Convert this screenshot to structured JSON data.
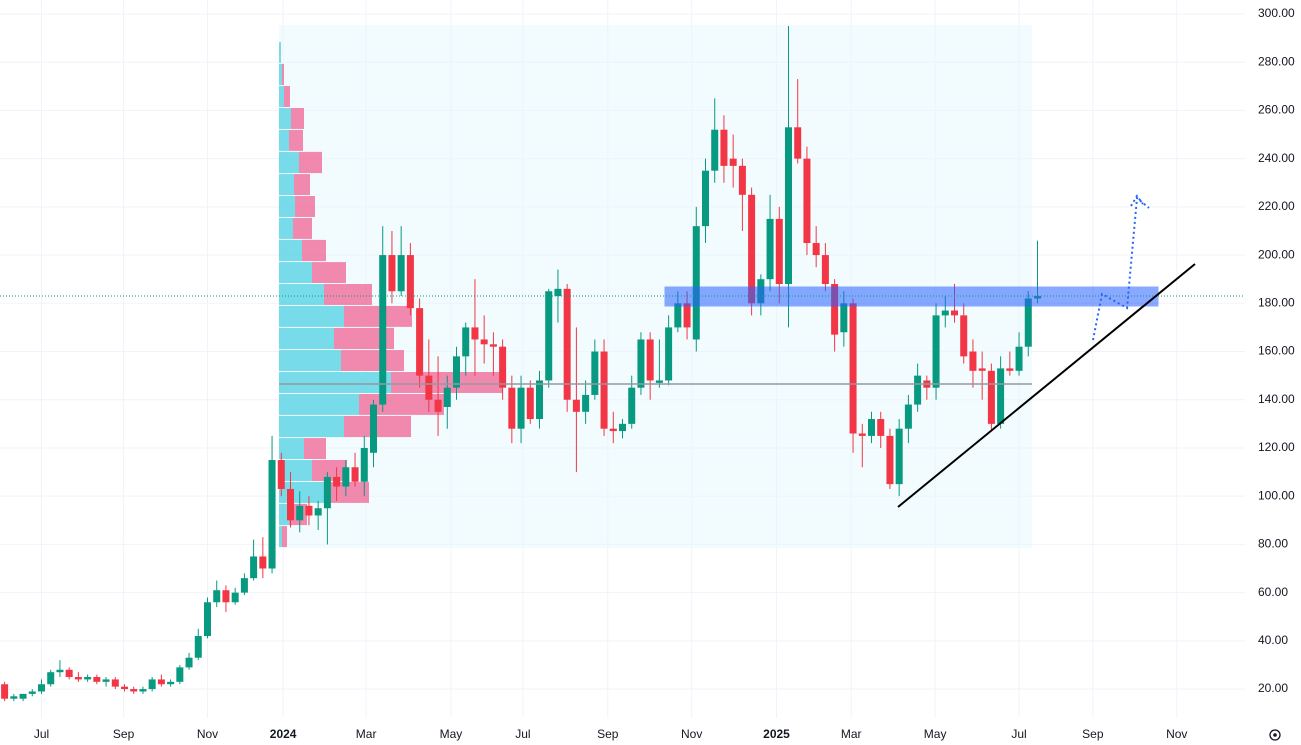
{
  "chart_data": {
    "type": "candlestick",
    "up_color": "#089981",
    "down_color": "#f23645",
    "open": [
      22,
      16,
      16,
      18,
      19,
      22,
      27,
      28,
      25,
      24,
      25,
      23,
      24,
      21,
      20,
      19,
      20,
      24,
      22,
      23,
      29,
      33,
      42,
      56,
      61,
      56,
      60,
      66,
      75,
      70,
      115,
      103,
      90,
      96,
      92,
      95,
      108,
      104,
      112,
      106,
      118,
      138,
      200,
      185,
      200,
      178,
      150,
      140,
      137,
      145,
      158,
      170,
      165,
      163,
      162,
      145,
      128,
      145,
      132,
      148,
      183,
      186,
      140,
      135,
      142,
      160,
      128,
      127,
      130,
      145,
      165,
      147,
      148,
      170,
      180,
      165,
      212,
      235,
      252,
      240,
      237,
      225,
      180,
      190,
      215,
      188,
      253,
      240,
      205,
      200,
      188,
      168,
      180,
      126,
      125,
      132,
      125,
      105,
      128,
      138,
      148,
      145,
      175,
      177,
      175,
      160,
      153,
      152,
      130,
      153,
      152,
      162,
      182
    ],
    "high": [
      23,
      18,
      18,
      20,
      24,
      28,
      32,
      29,
      27,
      26,
      26,
      25,
      25,
      22,
      21,
      21,
      25,
      26,
      24,
      30,
      35,
      45,
      58,
      65,
      63,
      62,
      68,
      82,
      83,
      125,
      118,
      110,
      102,
      100,
      98,
      110,
      112,
      115,
      118,
      125,
      140,
      212,
      210,
      212,
      205,
      182,
      165,
      158,
      150,
      162,
      172,
      190,
      175,
      168,
      165,
      150,
      150,
      148,
      152,
      186,
      194,
      188,
      170,
      148,
      165,
      165,
      135,
      132,
      150,
      168,
      168,
      165,
      175,
      185,
      185,
      220,
      240,
      265,
      258,
      250,
      240,
      228,
      192,
      225,
      220,
      295,
      273,
      245,
      212,
      205,
      190,
      185,
      182,
      130,
      135,
      135,
      128,
      132,
      142,
      155,
      150,
      180,
      183,
      188,
      180,
      165,
      160,
      155,
      158,
      160,
      168,
      185,
      206
    ],
    "low": [
      15,
      15,
      15,
      17,
      18,
      21,
      25,
      24,
      23,
      23,
      22,
      21,
      20,
      19,
      18,
      18,
      19,
      21,
      21,
      22,
      28,
      32,
      41,
      54,
      52,
      55,
      59,
      65,
      66,
      68,
      100,
      87,
      85,
      88,
      86,
      80,
      98,
      100,
      104,
      100,
      112,
      135,
      180,
      183,
      175,
      145,
      135,
      125,
      128,
      140,
      150,
      150,
      155,
      150,
      140,
      122,
      122,
      130,
      128,
      145,
      172,
      135,
      110,
      130,
      140,
      125,
      122,
      124,
      128,
      142,
      140,
      145,
      146,
      168,
      165,
      160,
      205,
      230,
      230,
      228,
      210,
      175,
      175,
      185,
      180,
      170,
      238,
      200,
      195,
      185,
      160,
      162,
      118,
      112,
      122,
      120,
      103,
      100,
      122,
      135,
      140,
      140,
      170,
      172,
      155,
      145,
      140,
      127,
      128,
      150,
      150,
      158,
      180
    ],
    "close": [
      16,
      17,
      18,
      19,
      22,
      27,
      28,
      25,
      24,
      25,
      23,
      24,
      21,
      20,
      19,
      20,
      24,
      22,
      23,
      29,
      33,
      42,
      56,
      61,
      56,
      60,
      66,
      75,
      70,
      115,
      103,
      90,
      96,
      92,
      95,
      108,
      104,
      112,
      106,
      120,
      138,
      200,
      185,
      200,
      178,
      150,
      140,
      135,
      145,
      158,
      170,
      165,
      163,
      162,
      145,
      128,
      145,
      132,
      148,
      185,
      186,
      140,
      135,
      142,
      160,
      128,
      127,
      130,
      145,
      165,
      148,
      148,
      170,
      180,
      170,
      212,
      235,
      252,
      237,
      237,
      225,
      180,
      190,
      215,
      188,
      253,
      240,
      205,
      200,
      188,
      167,
      180,
      126,
      125,
      132,
      125,
      105,
      128,
      138,
      150,
      145,
      175,
      177,
      175,
      158,
      152,
      152,
      130,
      153,
      152,
      162,
      182,
      183
    ],
    "xlim": [
      -0.5,
      134.5
    ],
    "xticks": [
      {
        "value": 4,
        "label": "Jul"
      },
      {
        "value": 12.9,
        "label": "Sep"
      },
      {
        "value": 22,
        "label": "Nov"
      },
      {
        "value": 30.2,
        "label": "2024"
      },
      {
        "value": 39.2,
        "label": "Mar"
      },
      {
        "value": 48.4,
        "label": "May"
      },
      {
        "value": 56.2,
        "label": "Jul"
      },
      {
        "value": 65.4,
        "label": "Sep"
      },
      {
        "value": 74.5,
        "label": "Nov"
      },
      {
        "value": 83.7,
        "label": "2025"
      },
      {
        "value": 91.8,
        "label": "Mar"
      },
      {
        "value": 100.9,
        "label": "May"
      },
      {
        "value": 110,
        "label": "Jul"
      },
      {
        "value": 118,
        "label": "Sep"
      },
      {
        "value": 127.1,
        "label": "Nov"
      }
    ],
    "ylim": [
      8,
      305.8
    ],
    "yticks": [
      {
        "value": 20,
        "label": "20.00"
      },
      {
        "value": 40,
        "label": "40.00"
      },
      {
        "value": 60,
        "label": "60.00"
      },
      {
        "value": 80,
        "label": "80.00"
      },
      {
        "value": 100,
        "label": "100.00"
      },
      {
        "value": 120,
        "label": "120.00"
      },
      {
        "value": 140,
        "label": "140.00"
      },
      {
        "value": 160,
        "label": "160.00"
      },
      {
        "value": 180,
        "label": "180.00"
      },
      {
        "value": 200,
        "label": "200.00"
      },
      {
        "value": 220,
        "label": "220.00"
      },
      {
        "value": 240,
        "label": "240.00"
      },
      {
        "value": 260,
        "label": "260.00"
      },
      {
        "value": 280,
        "label": "280.00"
      },
      {
        "value": 300,
        "label": "300.00"
      }
    ],
    "grid": true,
    "volume_profile": {
      "up_color": "#4dd0e1",
      "down_color": "#f06292",
      "bins": [
        78.5,
        87.6,
        96.8,
        105.9,
        115.0,
        124.1,
        133.3,
        142.4,
        151.5,
        160.6,
        169.8,
        178.9,
        188.0,
        197.1,
        206.3,
        215.4,
        224.5,
        233.6,
        242.8,
        251.9,
        261.0,
        270.1,
        279.3,
        288.4
      ],
      "up": [
        3,
        10,
        45,
        33,
        25,
        65,
        80,
        112,
        62,
        55,
        65,
        45,
        33,
        23,
        14,
        16,
        15,
        20,
        10,
        12,
        5,
        3,
        2
      ],
      "down": [
        5,
        18,
        45,
        35,
        22,
        67,
        85,
        112,
        63,
        60,
        68,
        48,
        34,
        24,
        19,
        20,
        16,
        23,
        14,
        13,
        6,
        2,
        0
      ]
    }
  }
}
